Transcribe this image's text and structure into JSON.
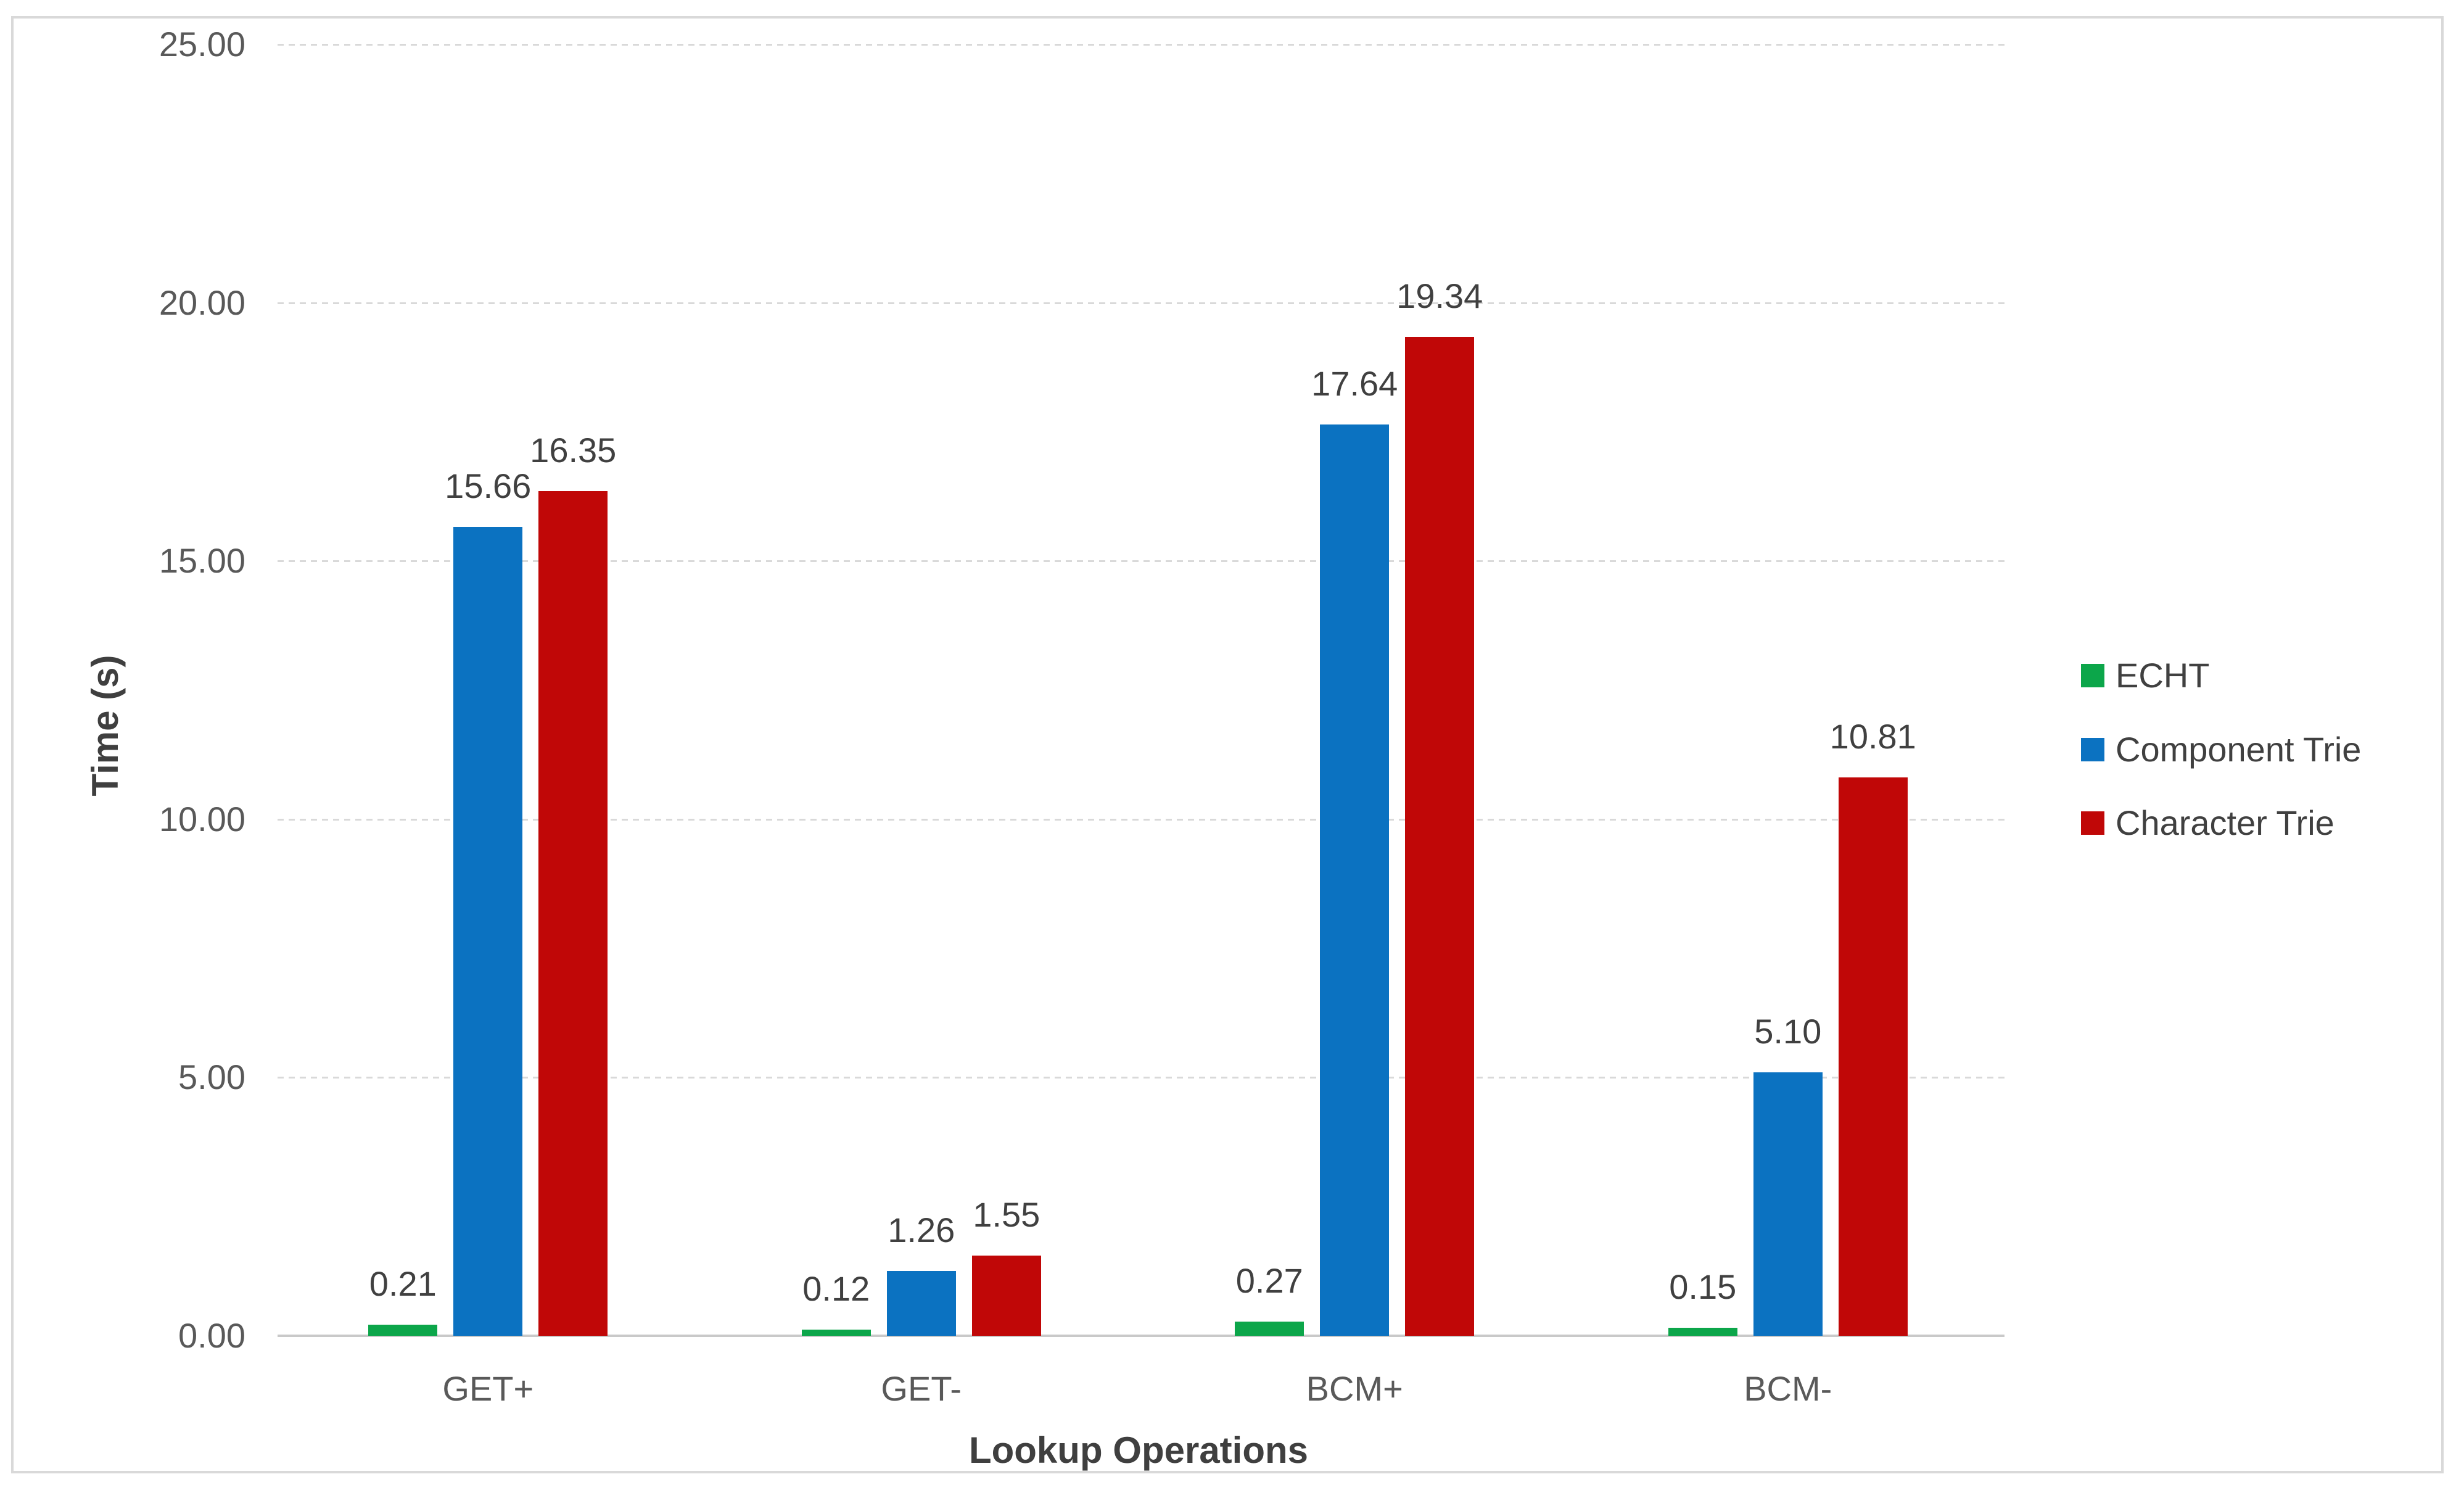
{
  "chart_data": {
    "type": "bar",
    "title": "",
    "xlabel": "Lookup Operations",
    "ylabel": "Time (s)",
    "categories": [
      "GET+",
      "GET-",
      "BCM+",
      "BCM-"
    ],
    "series": [
      {
        "name": "ECHT",
        "color": "#0CA64A",
        "values": [
          0.21,
          0.12,
          0.27,
          0.15
        ],
        "labels": [
          "0.21",
          "0.12",
          "0.27",
          "0.15"
        ]
      },
      {
        "name": "Component Trie",
        "color": "#0B72C1",
        "values": [
          15.66,
          1.26,
          17.64,
          5.1
        ],
        "labels": [
          "15.66",
          "1.26",
          "17.64",
          "5.10"
        ]
      },
      {
        "name": "Character Trie",
        "color": "#C00707",
        "values": [
          16.35,
          1.55,
          19.34,
          10.81
        ],
        "labels": [
          "16.35",
          "1.55",
          "19.34",
          "10.81"
        ]
      }
    ],
    "ylim": [
      0,
      25
    ],
    "ytick_step": 5,
    "ytick_labels": [
      "0.00",
      "5.00",
      "10.00",
      "15.00",
      "20.00",
      "25.00"
    ],
    "grid": "horizontal dashed gridlines on",
    "legend_position": "right",
    "colors": {
      "gridline": "#D9D9D9",
      "axis_baseline": "#C9C9C9",
      "chart_border": "#D9D9D9",
      "tick_text": "#595959",
      "label_text": "#404040",
      "title_text": "#3F3F3F"
    }
  }
}
